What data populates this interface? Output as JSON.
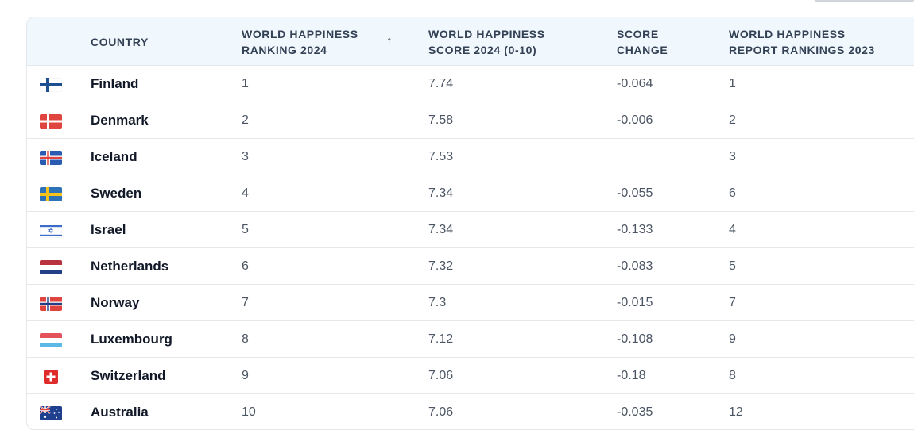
{
  "header": {
    "country": "COUNTRY",
    "ranking_2024": [
      "WORLD HAPPINESS",
      "RANKING 2024"
    ],
    "sort_icon": "↑",
    "score_2024": [
      "WORLD HAPPINESS",
      "SCORE 2024 (0-10)"
    ],
    "score_change": [
      "SCORE",
      "CHANGE"
    ],
    "rankings_2023": [
      "WORLD HAPPINESS",
      "REPORT RANKINGS 2023"
    ]
  },
  "rows": [
    {
      "flag": "finland-flag-icon",
      "country": "Finland",
      "rank": "1",
      "score": "7.74",
      "change": "-0.064",
      "rank2023": "1"
    },
    {
      "flag": "denmark-flag-icon",
      "country": "Denmark",
      "rank": "2",
      "score": "7.58",
      "change": "-0.006",
      "rank2023": "2"
    },
    {
      "flag": "iceland-flag-icon",
      "country": "Iceland",
      "rank": "3",
      "score": "7.53",
      "change": "",
      "rank2023": "3"
    },
    {
      "flag": "sweden-flag-icon",
      "country": "Sweden",
      "rank": "4",
      "score": "7.34",
      "change": "-0.055",
      "rank2023": "6"
    },
    {
      "flag": "israel-flag-icon",
      "country": "Israel",
      "rank": "5",
      "score": "7.34",
      "change": "-0.133",
      "rank2023": "4"
    },
    {
      "flag": "netherlands-flag-icon",
      "country": "Netherlands",
      "rank": "6",
      "score": "7.32",
      "change": "-0.083",
      "rank2023": "5"
    },
    {
      "flag": "norway-flag-icon",
      "country": "Norway",
      "rank": "7",
      "score": "7.3",
      "change": "-0.015",
      "rank2023": "7"
    },
    {
      "flag": "luxembourg-flag-icon",
      "country": "Luxembourg",
      "rank": "8",
      "score": "7.12",
      "change": "-0.108",
      "rank2023": "9"
    },
    {
      "flag": "switzerland-flag-icon",
      "country": "Switzerland",
      "rank": "9",
      "score": "7.06",
      "change": "-0.18",
      "rank2023": "8"
    },
    {
      "flag": "australia-flag-icon",
      "country": "Australia",
      "rank": "10",
      "score": "7.06",
      "change": "-0.035",
      "rank2023": "12"
    }
  ]
}
